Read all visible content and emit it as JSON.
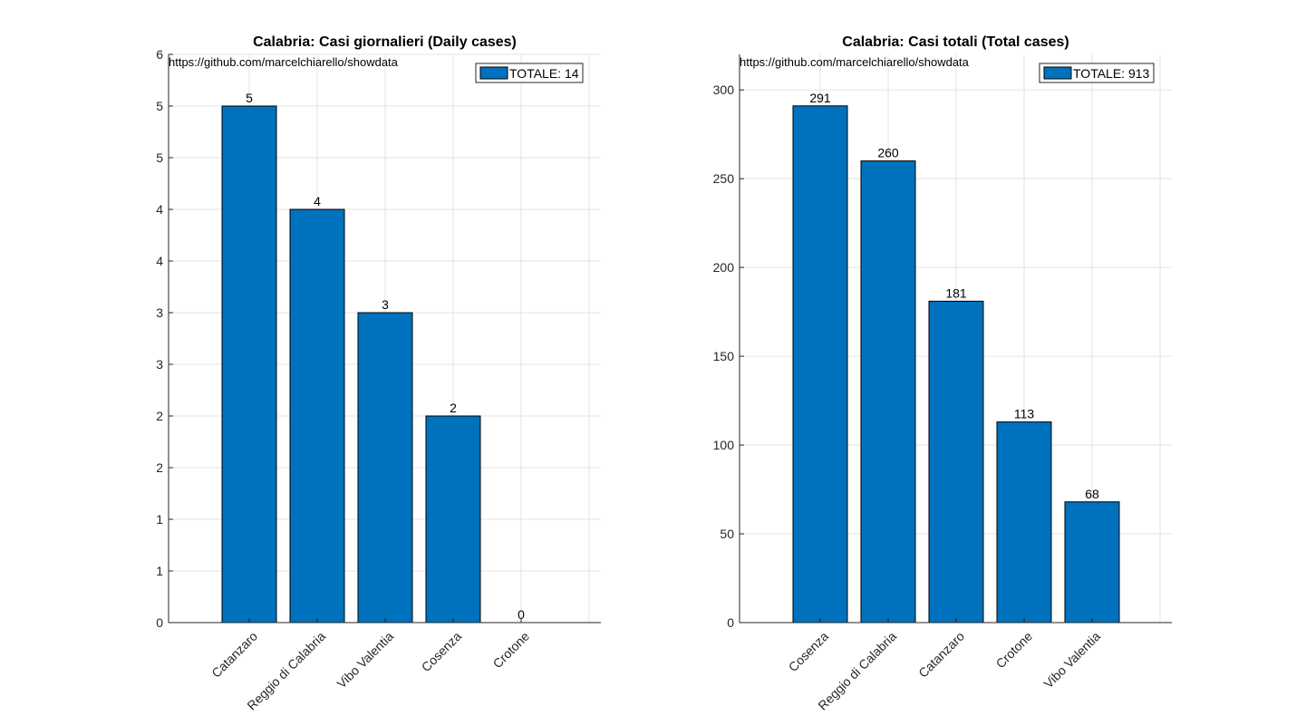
{
  "chart_data": [
    {
      "type": "bar",
      "title": "Calabria: Casi giornalieri (Daily cases)",
      "source_note": "https://github.com/marcelchiarello/showdata",
      "legend": "TOTALE: 14",
      "legend_position": "top-right",
      "categories": [
        "Catanzaro",
        "Reggio di Calabria",
        "Vibo Valentia",
        "Cosenza",
        "Crotone"
      ],
      "values": [
        5,
        4,
        3,
        2,
        0
      ],
      "value_labels": [
        "5",
        "4",
        "3",
        "2",
        "0"
      ],
      "ylim": [
        0,
        5.5
      ],
      "yticks": [
        0,
        0.5,
        1,
        1.5,
        2,
        2.5,
        3,
        3.5,
        4,
        4.5,
        5,
        5.5
      ],
      "ytick_labels": [
        "0",
        "1",
        "1",
        "2",
        "2",
        "3",
        "3",
        "4",
        "4",
        "5",
        "5",
        "6"
      ],
      "grid": true,
      "bar_color": "#0072BD"
    },
    {
      "type": "bar",
      "title": "Calabria: Casi totali (Total cases)",
      "source_note": "https://github.com/marcelchiarello/showdata",
      "legend": "TOTALE: 913",
      "legend_position": "top-right",
      "categories": [
        "Cosenza",
        "Reggio di Calabria",
        "Catanzaro",
        "Crotone",
        "Vibo Valentia"
      ],
      "values": [
        291,
        260,
        181,
        113,
        68
      ],
      "value_labels": [
        "291",
        "260",
        "181",
        "113",
        "68"
      ],
      "ylim": [
        0,
        320
      ],
      "yticks": [
        0,
        50,
        100,
        150,
        200,
        250,
        300
      ],
      "ytick_labels": [
        "0",
        "50",
        "100",
        "150",
        "200",
        "250",
        "300"
      ],
      "grid": true,
      "bar_color": "#0072BD"
    }
  ]
}
